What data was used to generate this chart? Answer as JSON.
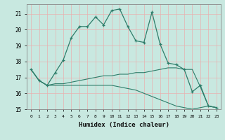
{
  "xlabel": "Humidex (Indice chaleur)",
  "x": [
    0,
    1,
    2,
    3,
    4,
    5,
    6,
    7,
    8,
    9,
    10,
    11,
    12,
    13,
    14,
    15,
    16,
    17,
    18,
    19,
    20,
    21,
    22,
    23
  ],
  "line1": [
    17.5,
    16.8,
    16.5,
    17.3,
    18.1,
    19.5,
    20.2,
    20.2,
    20.8,
    20.3,
    21.2,
    21.3,
    20.2,
    19.3,
    19.2,
    21.1,
    19.1,
    17.9,
    17.8,
    17.5,
    16.1,
    16.5,
    15.2,
    15.1
  ],
  "line2": [
    17.5,
    16.8,
    16.5,
    16.6,
    16.6,
    16.7,
    16.8,
    16.9,
    17.0,
    17.1,
    17.1,
    17.2,
    17.2,
    17.3,
    17.3,
    17.4,
    17.5,
    17.6,
    17.6,
    17.5,
    17.5,
    16.4,
    15.2,
    15.1
  ],
  "line3": [
    17.5,
    16.8,
    16.5,
    16.5,
    16.5,
    16.5,
    16.5,
    16.5,
    16.5,
    16.5,
    16.5,
    16.4,
    16.3,
    16.2,
    16.0,
    15.8,
    15.6,
    15.4,
    15.2,
    15.1,
    15.0,
    15.1,
    15.2,
    15.1
  ],
  "ylim": [
    15,
    21.6
  ],
  "yticks": [
    15,
    16,
    17,
    18,
    19,
    20,
    21
  ],
  "line_color": "#2E7D6A",
  "bg_color": "#C8E8E0",
  "grid_color": "#E8F8F4"
}
